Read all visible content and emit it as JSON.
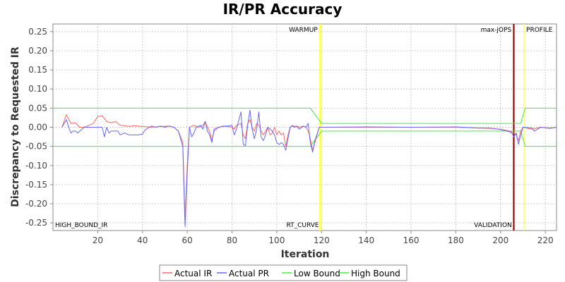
{
  "chart_data": {
    "type": "line",
    "title": "IR/PR Accuracy",
    "xlabel": "Iteration",
    "ylabel": "Discrepancy to Requested IR",
    "xlim": [
      0,
      225
    ],
    "ylim": [
      -0.27,
      0.27
    ],
    "x_ticks": [
      20,
      40,
      60,
      80,
      100,
      120,
      140,
      160,
      180,
      200,
      220
    ],
    "y_ticks": [
      0.25,
      0.2,
      0.15,
      0.1,
      0.05,
      0.0,
      -0.05,
      -0.1,
      -0.15,
      -0.2,
      -0.25
    ],
    "y_tick_labels": [
      "0.25",
      "0.20",
      "0.15",
      "0.10",
      "0.05",
      "0.00",
      "-0.05",
      "-0.10",
      "-0.15",
      "-0.20",
      "-0.25"
    ],
    "grid": true,
    "legend_position": "bottom",
    "series": [
      {
        "name": "Actual IR",
        "color": "#ff6666",
        "points": [
          [
            4,
            0.0
          ],
          [
            6,
            0.033
          ],
          [
            8,
            0.01
          ],
          [
            10,
            0.012
          ],
          [
            12,
            0.0
          ],
          [
            14,
            0.0
          ],
          [
            18,
            0.01
          ],
          [
            20,
            0.028
          ],
          [
            22,
            0.03
          ],
          [
            24,
            0.015
          ],
          [
            26,
            0.012
          ],
          [
            28,
            0.015
          ],
          [
            30,
            0.005
          ],
          [
            32,
            0.004
          ],
          [
            34,
            0.002
          ],
          [
            36,
            0.004
          ],
          [
            38,
            0.003
          ],
          [
            40,
            0.002
          ],
          [
            44,
            0.0
          ],
          [
            48,
            0.002
          ],
          [
            52,
            0.003
          ],
          [
            54,
            0.0
          ],
          [
            56,
            -0.01
          ],
          [
            58,
            -0.04
          ],
          [
            59,
            -0.24
          ],
          [
            60,
            -0.1
          ],
          [
            61,
            0.0
          ],
          [
            63,
            0.005
          ],
          [
            65,
            0.0
          ],
          [
            67,
            0.005
          ],
          [
            68,
            0.015
          ],
          [
            69,
            0.0
          ],
          [
            70,
            -0.01
          ],
          [
            71,
            -0.035
          ],
          [
            72,
            -0.01
          ],
          [
            74,
            0.0
          ],
          [
            76,
            0.002
          ],
          [
            78,
            0.002
          ],
          [
            80,
            0.0
          ],
          [
            81,
            -0.005
          ],
          [
            82,
            0.005
          ],
          [
            84,
            0.01
          ],
          [
            85,
            -0.02
          ],
          [
            86,
            -0.03
          ],
          [
            87,
            0.01
          ],
          [
            88,
            0.02
          ],
          [
            89,
            0.0
          ],
          [
            90,
            -0.01
          ],
          [
            91,
            0.01
          ],
          [
            92,
            0.005
          ],
          [
            93,
            -0.01
          ],
          [
            94,
            -0.02
          ],
          [
            95,
            -0.01
          ],
          [
            96,
            0.0
          ],
          [
            97,
            -0.02
          ],
          [
            98,
            -0.015
          ],
          [
            99,
            0.0
          ],
          [
            100,
            -0.02
          ],
          [
            101,
            -0.01
          ],
          [
            102,
            -0.02
          ],
          [
            103,
            -0.015
          ],
          [
            104,
            -0.05
          ],
          [
            105,
            -0.02
          ],
          [
            106,
            0.0
          ],
          [
            107,
            0.005
          ],
          [
            108,
            0.002
          ],
          [
            109,
            0.003
          ],
          [
            110,
            0.0
          ],
          [
            112,
            0.003
          ],
          [
            113,
            0.0
          ],
          [
            114,
            -0.01
          ],
          [
            115,
            -0.03
          ],
          [
            116,
            -0.06
          ],
          [
            117,
            -0.04
          ],
          [
            119,
            0.0
          ],
          [
            140,
            0.0
          ],
          [
            160,
            0.0
          ],
          [
            180,
            0.0
          ],
          [
            190,
            -0.002
          ],
          [
            195,
            -0.003
          ],
          [
            200,
            -0.005
          ],
          [
            204,
            -0.01
          ],
          [
            206,
            -0.015
          ],
          [
            207,
            -0.02
          ],
          [
            208,
            -0.035
          ],
          [
            209,
            -0.01
          ],
          [
            210,
            0.0
          ],
          [
            214,
            -0.005
          ],
          [
            218,
            0.0
          ],
          [
            222,
            -0.002
          ],
          [
            225,
            0.0
          ]
        ]
      },
      {
        "name": "Actual PR",
        "color": "#6666ff",
        "points": [
          [
            4,
            0.0
          ],
          [
            6,
            0.02
          ],
          [
            7,
            0.0
          ],
          [
            8,
            -0.015
          ],
          [
            9,
            -0.01
          ],
          [
            10,
            -0.01
          ],
          [
            11,
            -0.015
          ],
          [
            12,
            -0.01
          ],
          [
            14,
            0.0
          ],
          [
            18,
            0.0
          ],
          [
            20,
            0.0
          ],
          [
            22,
            0.0
          ],
          [
            23,
            -0.025
          ],
          [
            24,
            0.0
          ],
          [
            25,
            -0.015
          ],
          [
            26,
            -0.01
          ],
          [
            28,
            -0.01
          ],
          [
            29,
            -0.01
          ],
          [
            30,
            -0.02
          ],
          [
            32,
            -0.015
          ],
          [
            34,
            -0.02
          ],
          [
            36,
            -0.02
          ],
          [
            38,
            -0.02
          ],
          [
            40,
            -0.018
          ],
          [
            41,
            -0.008
          ],
          [
            43,
            0.0
          ],
          [
            44,
            0.003
          ],
          [
            46,
            0.0
          ],
          [
            48,
            0.003
          ],
          [
            50,
            0.0
          ],
          [
            52,
            0.003
          ],
          [
            54,
            0.0
          ],
          [
            56,
            -0.01
          ],
          [
            58,
            -0.05
          ],
          [
            59,
            -0.26
          ],
          [
            60,
            -0.12
          ],
          [
            61,
            0.0
          ],
          [
            62,
            -0.025
          ],
          [
            63,
            -0.015
          ],
          [
            64,
            0.0
          ],
          [
            66,
            0.005
          ],
          [
            67,
            -0.005
          ],
          [
            68,
            0.015
          ],
          [
            69,
            -0.01
          ],
          [
            70,
            -0.02
          ],
          [
            71,
            -0.04
          ],
          [
            72,
            -0.005
          ],
          [
            74,
            0.0
          ],
          [
            76,
            0.003
          ],
          [
            78,
            0.003
          ],
          [
            80,
            0.005
          ],
          [
            81,
            -0.02
          ],
          [
            82,
            -0.005
          ],
          [
            84,
            0.04
          ],
          [
            85,
            -0.045
          ],
          [
            86,
            -0.048
          ],
          [
            87,
            0.005
          ],
          [
            88,
            0.045
          ],
          [
            89,
            -0.005
          ],
          [
            90,
            -0.03
          ],
          [
            91,
            -0.005
          ],
          [
            92,
            0.04
          ],
          [
            93,
            -0.025
          ],
          [
            94,
            -0.035
          ],
          [
            95,
            -0.02
          ],
          [
            96,
            0.0
          ],
          [
            97,
            -0.005
          ],
          [
            98,
            -0.01
          ],
          [
            99,
            -0.02
          ],
          [
            100,
            -0.04
          ],
          [
            101,
            -0.045
          ],
          [
            102,
            -0.04
          ],
          [
            103,
            -0.045
          ],
          [
            104,
            -0.06
          ],
          [
            105,
            -0.03
          ],
          [
            106,
            0.0
          ],
          [
            107,
            0.003
          ],
          [
            108,
            0.0
          ],
          [
            109,
            0.003
          ],
          [
            110,
            -0.005
          ],
          [
            112,
            0.003
          ],
          [
            113,
            0.0
          ],
          [
            114,
            0.01
          ],
          [
            115,
            -0.04
          ],
          [
            116,
            -0.065
          ],
          [
            117,
            -0.035
          ],
          [
            119,
            0.0
          ],
          [
            140,
            0.001
          ],
          [
            160,
            0.0
          ],
          [
            180,
            0.001
          ],
          [
            190,
            -0.002
          ],
          [
            195,
            -0.002
          ],
          [
            200,
            -0.006
          ],
          [
            204,
            -0.012
          ],
          [
            205,
            -0.015
          ],
          [
            206,
            -0.025
          ],
          [
            207,
            -0.015
          ],
          [
            208,
            -0.045
          ],
          [
            209,
            -0.02
          ],
          [
            210,
            0.0
          ],
          [
            214,
            -0.002
          ],
          [
            215,
            -0.01
          ],
          [
            218,
            0.0
          ],
          [
            222,
            -0.003
          ],
          [
            225,
            0.0
          ]
        ]
      },
      {
        "name": "Low Bound",
        "color": "#44ee44",
        "points": [
          [
            0,
            -0.05
          ],
          [
            115,
            -0.05
          ],
          [
            120,
            -0.01
          ],
          [
            209,
            -0.01
          ],
          [
            211,
            -0.05
          ],
          [
            225,
            -0.05
          ]
        ]
      },
      {
        "name": "High Bound",
        "color": "#44ee44",
        "points": [
          [
            0,
            0.05
          ],
          [
            115,
            0.05
          ],
          [
            120,
            0.01
          ],
          [
            209,
            0.01
          ],
          [
            211,
            0.05
          ],
          [
            225,
            0.05
          ]
        ]
      }
    ],
    "markers": [
      {
        "label": "HIGH_BOUND_IR",
        "x": 0,
        "color": "#000000",
        "label_side": "right",
        "label_pos": "bottom"
      },
      {
        "label": "WARMUP",
        "x": 119.2,
        "color": "#ffff66",
        "label_side": "left",
        "label_pos": "top"
      },
      {
        "label": "RT_CURVE",
        "x": 119.8,
        "color": "#ffff66",
        "label_side": "left",
        "label_pos": "bottom"
      },
      {
        "label": "max-jOPS",
        "x": 205.8,
        "color": "#990000",
        "label_side": "left",
        "label_pos": "top"
      },
      {
        "label": "VALIDATION",
        "x": 206.0,
        "color": "#990000",
        "label_side": "left",
        "label_pos": "bottom"
      },
      {
        "label": "PROFILE",
        "x": 210.5,
        "color": "#ffff66",
        "label_side": "right",
        "label_pos": "top"
      }
    ]
  }
}
